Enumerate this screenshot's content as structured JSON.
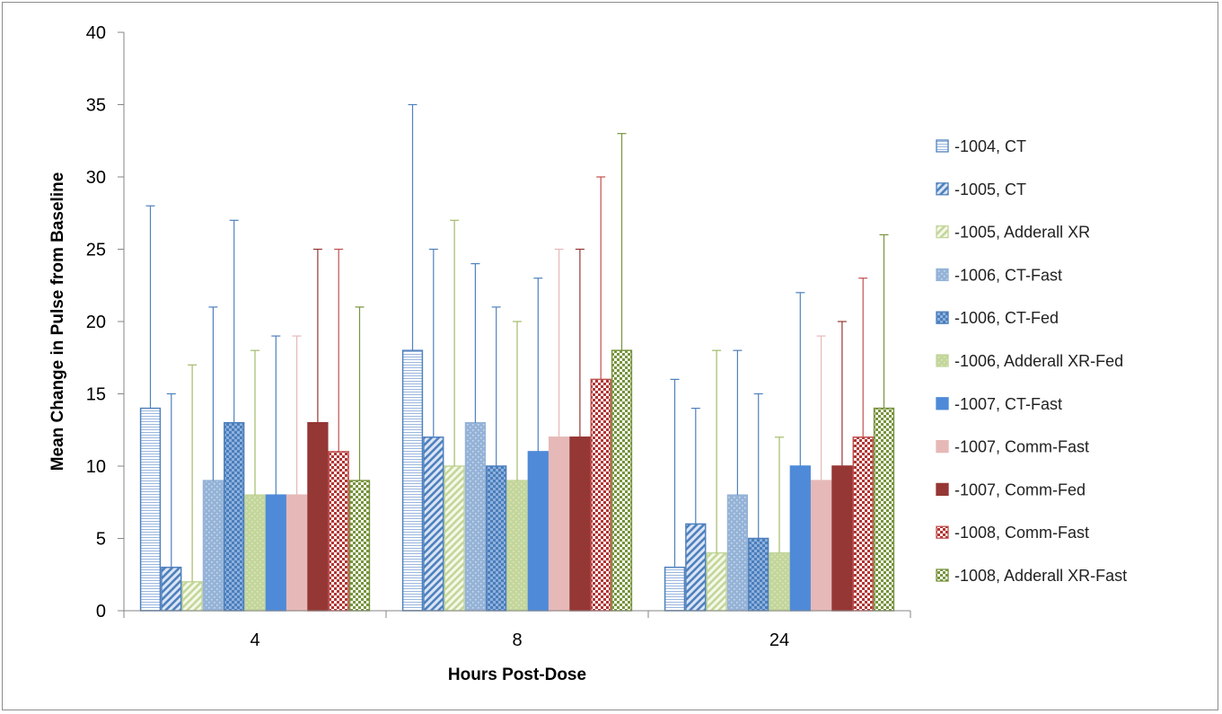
{
  "chart_data": {
    "type": "bar",
    "title": "",
    "xlabel": "Hours Post-Dose",
    "ylabel": "Mean Change in Pulse from Baseline",
    "ylim": [
      0,
      40
    ],
    "yticks": [
      0,
      5,
      10,
      15,
      20,
      25,
      30,
      35,
      40
    ],
    "categories": [
      "4",
      "8",
      "24"
    ],
    "grid": false,
    "legend_position": "right",
    "error_bars": "upper",
    "series": [
      {
        "name": "-1004, CT",
        "values": [
          14,
          18,
          3
        ],
        "error_upper": [
          28,
          35,
          16
        ],
        "fill": "#ffffff",
        "stroke": "#4f81bd",
        "pattern": "hlines",
        "pattern_color": "#9bb7dd"
      },
      {
        "name": "-1005, CT",
        "values": [
          3,
          12,
          6
        ],
        "error_upper": [
          15,
          25,
          14
        ],
        "fill": "#dbe5f5",
        "stroke": "#4f81bd",
        "pattern": "diag",
        "pattern_color": "#4f81bd"
      },
      {
        "name": "-1005, Adderall XR",
        "values": [
          2,
          10,
          4
        ],
        "error_upper": [
          17,
          27,
          18
        ],
        "fill": "#f5f9e8",
        "stroke": "#c3d69b",
        "pattern": "diag",
        "pattern_color": "#c3d69b"
      },
      {
        "name": "-1006, CT-Fast",
        "values": [
          9,
          13,
          8
        ],
        "error_upper": [
          21,
          24,
          18
        ],
        "fill": "#95b3d7",
        "stroke": "#95b3d7",
        "pattern": "dots",
        "pattern_color": "#c8d9ee"
      },
      {
        "name": "-1006, CT-Fed",
        "values": [
          13,
          10,
          5
        ],
        "error_upper": [
          27,
          21,
          15
        ],
        "fill": "#4a7ebb",
        "stroke": "#4a7ebb",
        "pattern": "checker",
        "pattern_color": "#8eb0dd"
      },
      {
        "name": "-1006, Adderall XR-Fed",
        "values": [
          8,
          9,
          4
        ],
        "error_upper": [
          18,
          20,
          12
        ],
        "fill": "#c3d69b",
        "stroke": "#c3d69b",
        "pattern": "dots",
        "pattern_color": "#dbe7c2"
      },
      {
        "name": "-1007, CT-Fast",
        "values": [
          8,
          11,
          10
        ],
        "error_upper": [
          19,
          23,
          22
        ],
        "fill": "#4f8ad8",
        "stroke": "#4f8ad8",
        "pattern": "none",
        "pattern_color": "#4f8ad8"
      },
      {
        "name": "-1007, Comm-Fast",
        "values": [
          8,
          12,
          9
        ],
        "error_upper": [
          19,
          25,
          19
        ],
        "fill": "#e6b9b8",
        "stroke": "#e6b9b8",
        "pattern": "none",
        "pattern_color": "#e6b9b8"
      },
      {
        "name": "-1007, Comm-Fed",
        "values": [
          13,
          12,
          10
        ],
        "error_upper": [
          25,
          25,
          20
        ],
        "fill": "#953735",
        "stroke": "#953735",
        "pattern": "none",
        "pattern_color": "#953735"
      },
      {
        "name": "-1008, Comm-Fast",
        "values": [
          11,
          16,
          12
        ],
        "error_upper": [
          25,
          30,
          23
        ],
        "fill": "#ffffff",
        "stroke": "#c0504d",
        "pattern": "checker",
        "pattern_color": "#b03533"
      },
      {
        "name": "-1008, Adderall XR-Fast",
        "values": [
          9,
          18,
          14
        ],
        "error_upper": [
          21,
          33,
          26
        ],
        "fill": "#ffffff",
        "stroke": "#77933c",
        "pattern": "checker",
        "pattern_color": "#77933c"
      }
    ],
    "error_bar_colors": [
      "#4f81bd",
      "#4f81bd",
      "#a3ba6a",
      "#4f81bd",
      "#4f81bd",
      "#a3ba6a",
      "#4f81bd",
      "#e6b9b8",
      "#953735",
      "#c0504d",
      "#77933c"
    ]
  }
}
